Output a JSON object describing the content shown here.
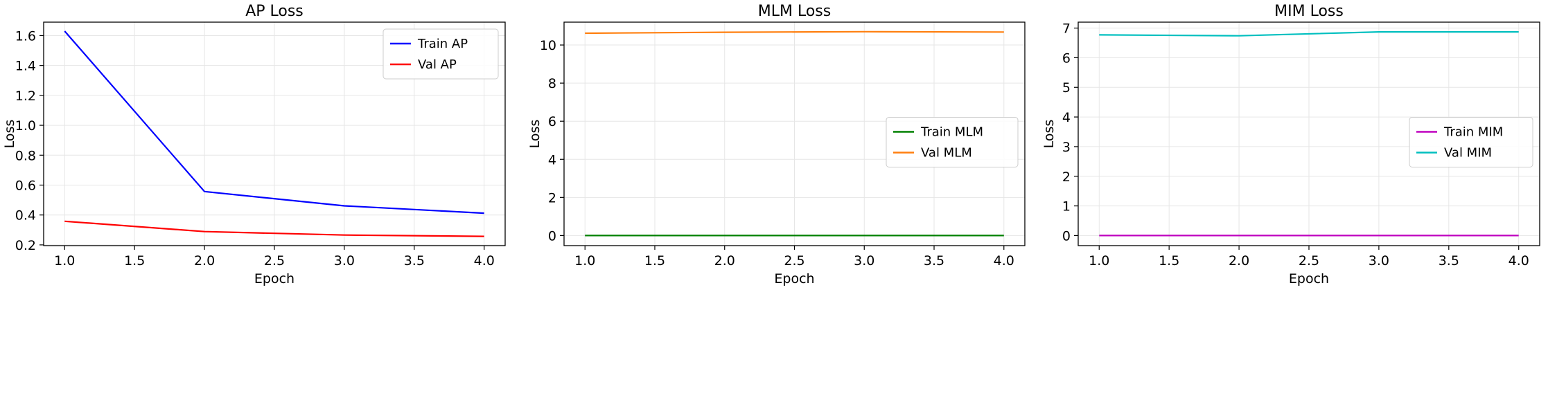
{
  "chart_data": [
    {
      "type": "line",
      "title": "AP Loss",
      "xlabel": "Epoch",
      "ylabel": "Loss",
      "x": [
        1,
        2,
        3,
        4
      ],
      "xlim": [
        0.85,
        4.15
      ],
      "ylim": [
        0.195,
        1.69
      ],
      "xticks": [
        "1.0",
        "1.5",
        "2.0",
        "2.5",
        "3.0",
        "3.5",
        "4.0"
      ],
      "yticks": [
        "0.2",
        "0.4",
        "0.6",
        "0.8",
        "1.0",
        "1.2",
        "1.4",
        "1.6"
      ],
      "grid": true,
      "legend": "upper-right",
      "series": [
        {
          "name": "Train AP",
          "color": "#0000ff",
          "values": [
            1.63,
            0.557,
            0.461,
            0.412
          ]
        },
        {
          "name": "Val AP",
          "color": "#ff0000",
          "values": [
            0.358,
            0.289,
            0.266,
            0.257
          ]
        }
      ]
    },
    {
      "type": "line",
      "title": "MLM Loss",
      "xlabel": "Epoch",
      "ylabel": "Loss",
      "x": [
        1,
        2,
        3,
        4
      ],
      "xlim": [
        0.85,
        4.15
      ],
      "ylim": [
        -0.53,
        11.2
      ],
      "xticks": [
        "1.0",
        "1.5",
        "2.0",
        "2.5",
        "3.0",
        "3.5",
        "4.0"
      ],
      "yticks": [
        "0",
        "2",
        "4",
        "6",
        "8",
        "10"
      ],
      "grid": true,
      "legend": "center-right",
      "series": [
        {
          "name": "Train MLM",
          "color": "#008000",
          "values": [
            0.0,
            0.0,
            0.0,
            0.0
          ]
        },
        {
          "name": "Val MLM",
          "color": "#ff7f0e",
          "values": [
            10.62,
            10.67,
            10.7,
            10.68
          ]
        }
      ]
    },
    {
      "type": "line",
      "title": "MIM Loss",
      "xlabel": "Epoch",
      "ylabel": "Loss",
      "x": [
        1,
        2,
        3,
        4
      ],
      "xlim": [
        0.85,
        4.15
      ],
      "ylim": [
        -0.34,
        7.2
      ],
      "xticks": [
        "1.0",
        "1.5",
        "2.0",
        "2.5",
        "3.0",
        "3.5",
        "4.0"
      ],
      "yticks": [
        "0",
        "1",
        "2",
        "3",
        "4",
        "5",
        "6",
        "7"
      ],
      "grid": true,
      "legend": "center-right",
      "series": [
        {
          "name": "Train MIM",
          "color": "#bf00bf",
          "values": [
            0.0,
            0.0,
            0.0,
            0.0
          ]
        },
        {
          "name": "Val MIM",
          "color": "#00bfbf",
          "values": [
            6.77,
            6.74,
            6.87,
            6.87
          ]
        }
      ]
    }
  ]
}
